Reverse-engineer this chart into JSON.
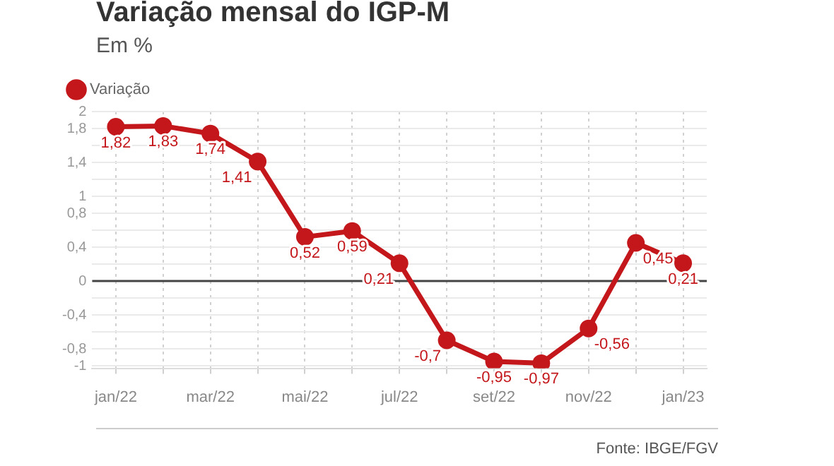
{
  "chart_data": {
    "type": "line",
    "title": "Variação mensal do IGP-M",
    "subtitle": "Em %",
    "categories": [
      "jan/22",
      null,
      "mar/22",
      null,
      "mai/22",
      null,
      "jul/22",
      null,
      "set/22",
      null,
      "nov/22",
      null,
      "jan/23"
    ],
    "series": [
      {
        "name": "Variação",
        "color": "#c4171b",
        "values": [
          1.82,
          1.83,
          1.74,
          1.41,
          0.52,
          0.59,
          0.21,
          -0.7,
          -0.95,
          -0.97,
          -0.56,
          0.45,
          0.21
        ],
        "value_labels": [
          "1,82",
          "1,83",
          "1,74",
          "1,41",
          "0,52",
          "0,59",
          "0,21",
          "-0,7",
          "-0,95",
          "-0,97",
          "-0,56",
          "0,45",
          "0,21"
        ]
      }
    ],
    "ylim": [
      -1.03,
      2
    ],
    "yticks": [
      {
        "value": -1,
        "label": "-1"
      },
      {
        "value": -0.8,
        "label": "-0,8"
      },
      {
        "value": -0.6,
        "label": null
      },
      {
        "value": -0.4,
        "label": "-0,4"
      },
      {
        "value": -0.2,
        "label": null
      },
      0,
      {
        "value": 0.2,
        "label": null
      },
      {
        "value": 0.4,
        "label": "0,4"
      },
      {
        "value": 0.6,
        "label": null
      },
      {
        "value": 0.8,
        "label": "0,8"
      },
      1,
      {
        "value": 1.2,
        "label": null
      },
      {
        "value": 1.4,
        "label": "1,4"
      },
      {
        "value": 1.6,
        "label": null
      },
      {
        "value": 1.8,
        "label": "1,8"
      },
      2
    ],
    "ref_lines": [
      {
        "axis": "y",
        "value": 0,
        "color": "#444444"
      }
    ],
    "grid": true,
    "legend": "top left",
    "marker": "circle",
    "line_style": "solid",
    "annotations": [
      "Fonte: IBGE/FGV"
    ]
  }
}
